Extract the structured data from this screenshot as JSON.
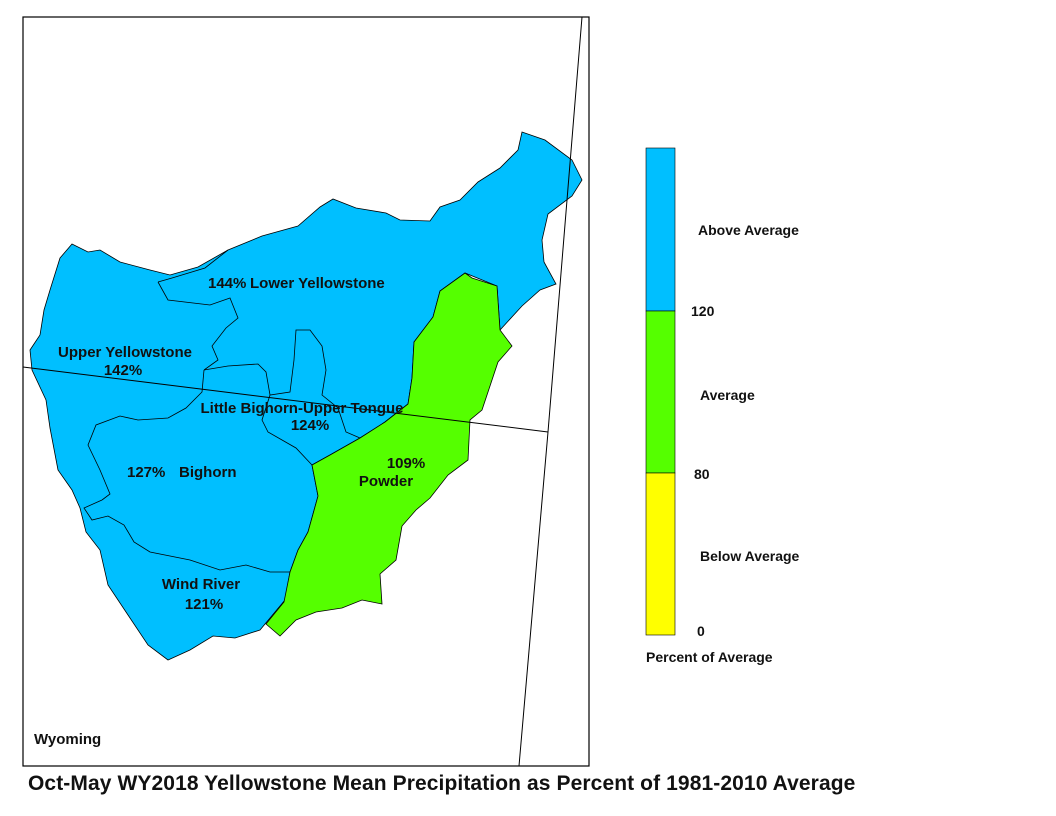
{
  "map": {
    "state_label": "Wyoming",
    "basins": [
      {
        "name": "Lower Yellowstone",
        "percent": "144%",
        "category": "above"
      },
      {
        "name": "Upper Yellowstone",
        "percent": "142%",
        "category": "above"
      },
      {
        "name": "Little Bighorn-Upper Tongue",
        "percent": "124%",
        "category": "above"
      },
      {
        "name": "Bighorn",
        "percent": "127%",
        "category": "above"
      },
      {
        "name": "Wind River",
        "percent": "121%",
        "category": "above"
      },
      {
        "name": "Powder",
        "percent": "109%",
        "category": "average"
      }
    ]
  },
  "legend": {
    "classes": [
      {
        "label": "Above Average",
        "color": "#00BFFF"
      },
      {
        "label": "Average",
        "color": "#55FF00"
      },
      {
        "label": "Below Average",
        "color": "#FFFF00"
      }
    ],
    "breaks": [
      "120",
      "80",
      "0"
    ],
    "caption": "Percent of Average"
  },
  "title": "Oct-May WY2018 Yellowstone Mean Precipitation as Percent of 1981-2010 Average"
}
